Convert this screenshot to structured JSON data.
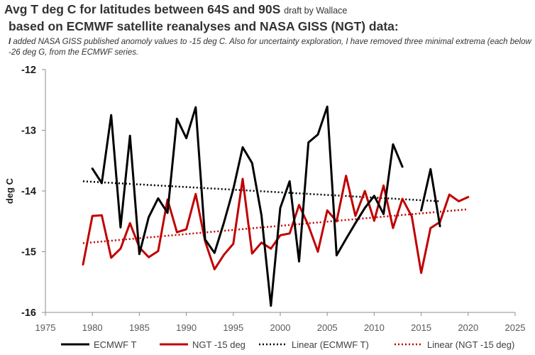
{
  "header": {
    "title_main": "Avg T deg C for latitudes between 64S and 90S",
    "title_small": "draft by Wallace",
    "title_line2": "based on ECMWF satellite reanalyses and NASA GISS (NGT) data:",
    "note_lead": "I",
    "note_rest": " added NASA GISS published anomoly values to -15 deg C.  Also for uncertainty exploration, I have removed three minimal extrema (each below -26 deg G, from the ECMWF series."
  },
  "chart_data": {
    "type": "line",
    "title": "Avg T deg C for latitudes between 64S and 90S",
    "xlabel": "",
    "ylabel": "deg C",
    "xlim": [
      1975,
      2025
    ],
    "ylim": [
      -16,
      -12
    ],
    "x_ticks": [
      1975,
      1980,
      1985,
      1990,
      1995,
      2000,
      2005,
      2010,
      2015,
      2020,
      2025
    ],
    "y_ticks": [
      -12,
      -13,
      -14,
      -15,
      -16
    ],
    "grid": false,
    "legend_position": "bottom",
    "series": [
      {
        "name": "ECMWF T",
        "color": "#000000",
        "style": "solid",
        "segments": [
          {
            "x": [
              1980,
              1981,
              1982,
              1983,
              1984,
              1985,
              1986,
              1987,
              1988,
              1989,
              1990,
              1991,
              1992,
              1993,
              1994,
              1995,
              1996,
              1997,
              1998,
              1999,
              2000,
              2001,
              2002,
              2003,
              2004,
              2005,
              2006,
              2007,
              2008,
              2009,
              2010,
              2011,
              2012,
              2013
            ],
            "y": [
              -13.63,
              -13.87,
              -12.75,
              -14.6,
              -13.09,
              -15.04,
              -14.43,
              -14.12,
              -14.36,
              -12.81,
              -13.13,
              -12.62,
              -14.8,
              -15.02,
              -14.52,
              -13.97,
              -13.28,
              -13.54,
              -14.4,
              -15.89,
              -14.28,
              -13.84,
              -15.16,
              -13.2,
              -13.07,
              -12.61,
              -15.06,
              -14.79,
              -14.53,
              -14.28,
              -14.08,
              -14.38,
              -13.23,
              -13.6
            ]
          },
          {
            "x": [
              2015,
              2016,
              2017
            ],
            "y": [
              -14.32,
              -13.64,
              -14.58
            ]
          }
        ]
      },
      {
        "name": "NGT -15 deg",
        "color": "#c00000",
        "style": "solid",
        "segments": [
          {
            "x": [
              1979,
              1980,
              1981,
              1982,
              1983,
              1984,
              1985,
              1986,
              1987,
              1988,
              1989,
              1990,
              1991,
              1992,
              1993,
              1994,
              1995,
              1996,
              1997,
              1998,
              1999,
              2000,
              2001,
              2002,
              2003,
              2004,
              2005,
              2006,
              2007,
              2008,
              2009,
              2010,
              2011,
              2012,
              2013,
              2014,
              2015,
              2016,
              2017,
              2018,
              2019,
              2020
            ],
            "y": [
              -15.21,
              -14.41,
              -14.4,
              -15.1,
              -14.95,
              -14.53,
              -14.93,
              -15.09,
              -14.99,
              -14.14,
              -14.68,
              -14.63,
              -14.05,
              -14.83,
              -15.29,
              -15.05,
              -14.87,
              -13.8,
              -15.03,
              -14.85,
              -14.95,
              -14.73,
              -14.7,
              -14.23,
              -14.57,
              -15.0,
              -14.32,
              -14.5,
              -13.75,
              -14.41,
              -14.0,
              -14.49,
              -13.91,
              -14.61,
              -14.13,
              -14.42,
              -15.35,
              -14.61,
              -14.51,
              -14.06,
              -14.17,
              -14.1
            ]
          }
        ]
      },
      {
        "name": "Linear (ECMWF T)",
        "color": "#000000",
        "style": "dotted",
        "segments": [
          {
            "x": [
              1979,
              2017
            ],
            "y": [
              -13.84,
              -14.17
            ]
          }
        ]
      },
      {
        "name": "Linear (NGT -15 deg)",
        "color": "#c00000",
        "style": "dotted",
        "segments": [
          {
            "x": [
              1979,
              2020
            ],
            "y": [
              -14.86,
              -14.3
            ]
          }
        ]
      }
    ]
  }
}
